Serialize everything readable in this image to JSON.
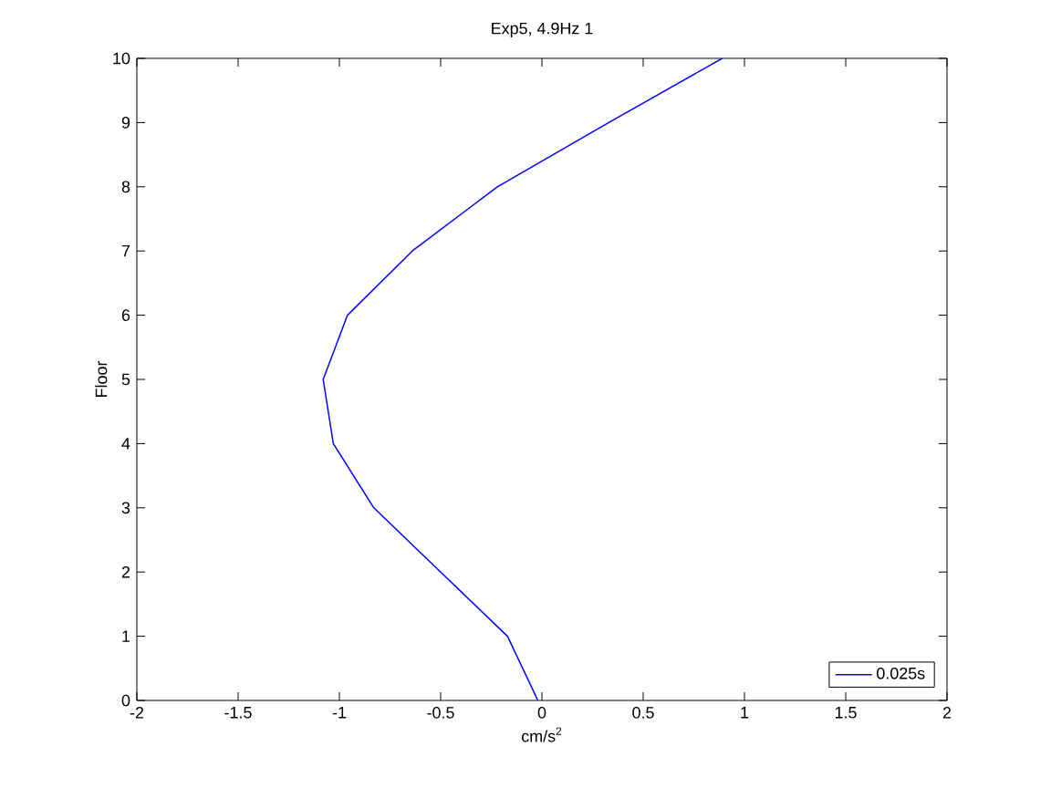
{
  "chart_data": {
    "type": "line",
    "title": "Exp5, 4.9Hz 1",
    "xlabel": "cm/s$^{2}$",
    "ylabel": "Floor",
    "xlim": [
      -2,
      2
    ],
    "ylim": [
      0,
      10
    ],
    "xticks": [
      -2,
      -1.5,
      -1,
      -0.5,
      0,
      0.5,
      1,
      1.5,
      2
    ],
    "yticks": [
      0,
      1,
      2,
      3,
      4,
      5,
      6,
      7,
      8,
      9,
      10
    ],
    "legend": "bottom right",
    "series": [
      {
        "name": "0.025s",
        "color": "#0000ff",
        "x": [
          -0.02,
          -0.17,
          -0.5,
          -0.83,
          -1.03,
          -1.08,
          -0.96,
          -0.64,
          -0.22,
          0.33,
          0.89
        ],
        "values": [
          0,
          1,
          2,
          3,
          4,
          5,
          6,
          7,
          8,
          9,
          10
        ]
      }
    ]
  }
}
